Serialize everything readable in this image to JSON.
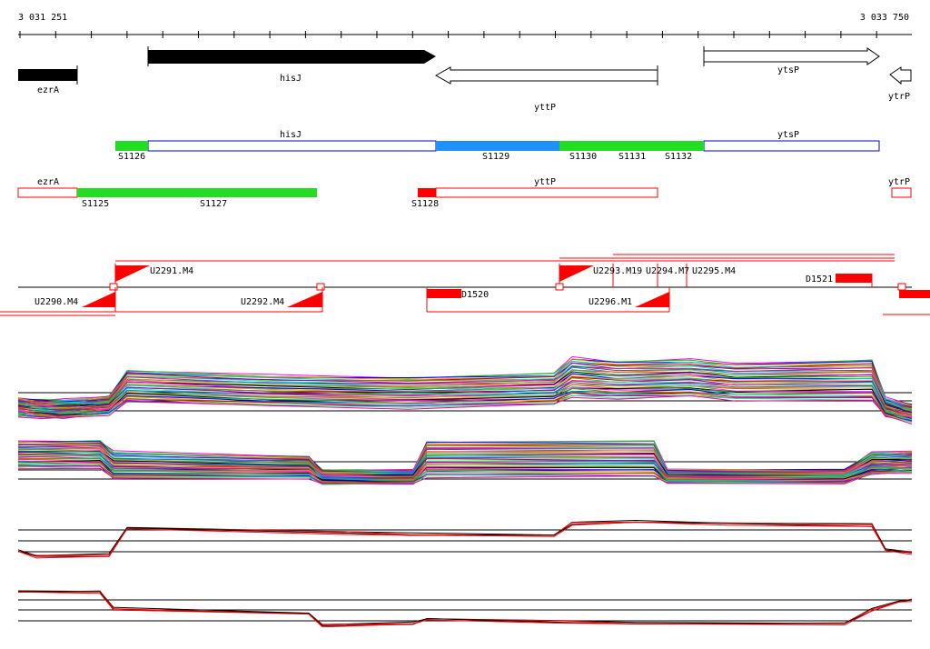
{
  "coords": {
    "start": "3 031 251",
    "end": "3 033 750"
  },
  "colors": {
    "black": "#000000",
    "green": "#22dd22",
    "blue": "#1e90ff",
    "red": "#ff0000",
    "white": "#ffffff",
    "darkblue": "#0000bb"
  },
  "genes": [
    {
      "name": "ezrA",
      "id": "gene-ezrA"
    },
    {
      "name": "hisJ",
      "id": "gene-hisJ"
    },
    {
      "name": "yttP",
      "id": "gene-yttP"
    },
    {
      "name": "ytsP",
      "id": "gene-ytsP"
    },
    {
      "name": "ytrP",
      "id": "gene-ytrP"
    }
  ],
  "segments_top": {
    "labels": [
      "S1126",
      "S1129",
      "S1130",
      "S1131",
      "S1132"
    ],
    "gene_labels": [
      "hisJ",
      "ytsP"
    ]
  },
  "segments_bottom": {
    "labels": [
      "S1125",
      "S1127",
      "S1128"
    ],
    "gene_labels": [
      "ezrA",
      "yttP",
      "ytrP"
    ]
  },
  "features": {
    "labels": [
      "U2291.M4",
      "U2293.M19",
      "U2294.M7",
      "U2295.M4",
      "D1521",
      "U2290.M4",
      "U2292.M4",
      "D1520",
      "U2296.M1"
    ]
  },
  "tracks": [
    {
      "name": "expression-panel-1",
      "color_set": "multi"
    },
    {
      "name": "expression-panel-2",
      "color_set": "multi"
    },
    {
      "name": "expression-panel-3",
      "color_set": "black-red"
    },
    {
      "name": "expression-panel-4",
      "color_set": "black-red"
    }
  ]
}
